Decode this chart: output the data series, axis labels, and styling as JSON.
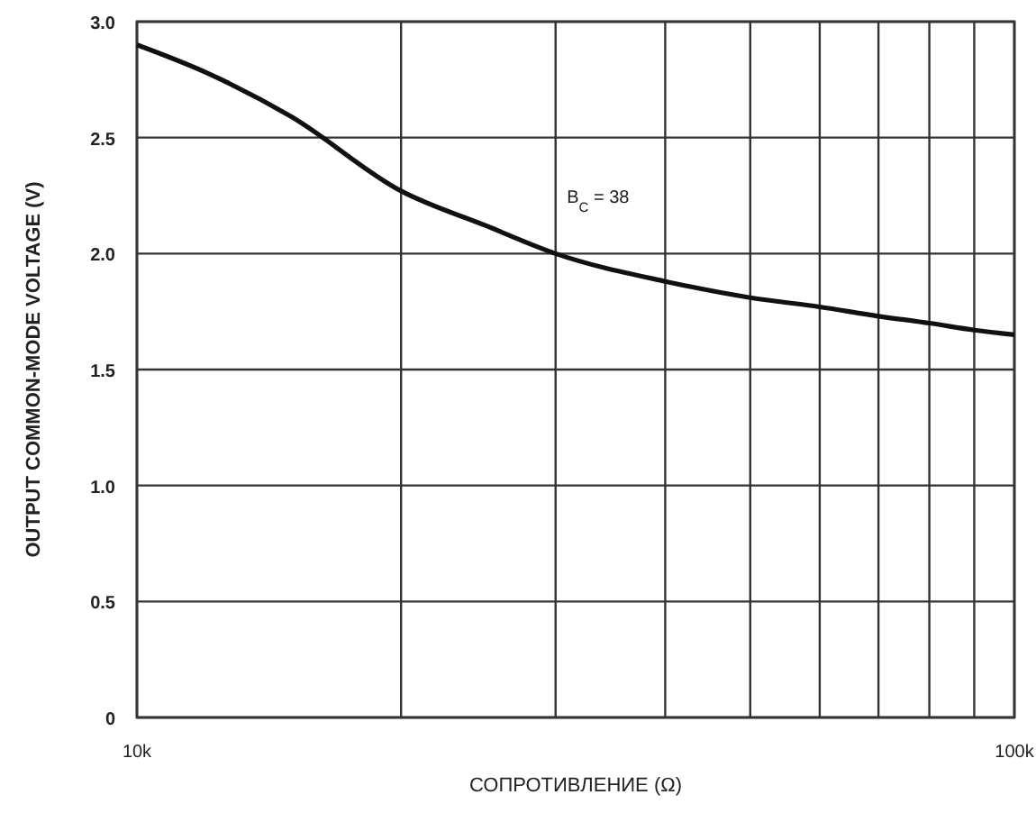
{
  "chart_data": {
    "type": "line",
    "xlabel": "СОПРОТИВЛЕНИЕ (Ω)",
    "ylabel": "OUTPUT COMMON-MODE VOLTAGE (V)",
    "log": "x",
    "grid": true,
    "x": [
      10000,
      12000,
      15000,
      20000,
      25000,
      30000,
      40000,
      50000,
      60000,
      70000,
      80000,
      90000,
      100000
    ],
    "series": [
      {
        "color": "#111111",
        "values": [
          2.9,
          2.78,
          2.59,
          2.27,
          2.12,
          2.0,
          1.88,
          1.81,
          1.77,
          1.73,
          1.7,
          1.67,
          1.65
        ]
      }
    ],
    "xlim": [
      10000,
      100000
    ],
    "xticks": [
      {
        "value": 10000,
        "label": "10k"
      },
      {
        "value": 20000,
        "label": null
      },
      {
        "value": 30000,
        "label": null
      },
      {
        "value": 40000,
        "label": null
      },
      {
        "value": 50000,
        "label": null
      },
      {
        "value": 60000,
        "label": null
      },
      {
        "value": 70000,
        "label": null
      },
      {
        "value": 80000,
        "label": null
      },
      {
        "value": 90000,
        "label": null
      },
      {
        "value": 100000,
        "label": "100k"
      }
    ],
    "ylim": [
      0,
      3
    ],
    "yticks": [
      {
        "value": 0,
        "label": "0"
      },
      {
        "value": 0.5,
        "label": "0.5"
      },
      {
        "value": 1,
        "label": "1.0"
      },
      {
        "value": 1.5,
        "label": "1.5"
      },
      {
        "value": 2,
        "label": "2.0"
      },
      {
        "value": 2.5,
        "label": "2.5"
      },
      {
        "value": 3,
        "label": "3.0"
      }
    ],
    "annotations": [
      "B$_{C}$ = 38"
    ]
  }
}
